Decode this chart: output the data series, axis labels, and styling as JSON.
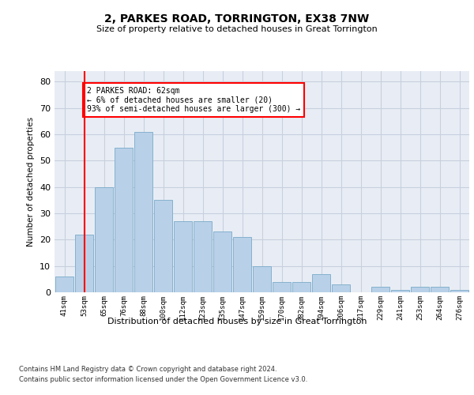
{
  "title1": "2, PARKES ROAD, TORRINGTON, EX38 7NW",
  "title2": "Size of property relative to detached houses in Great Torrington",
  "xlabel": "Distribution of detached houses by size in Great Torrington",
  "ylabel": "Number of detached properties",
  "bar_labels": [
    "41sqm",
    "53sqm",
    "65sqm",
    "76sqm",
    "88sqm",
    "100sqm",
    "112sqm",
    "123sqm",
    "135sqm",
    "147sqm",
    "159sqm",
    "170sqm",
    "182sqm",
    "194sqm",
    "206sqm",
    "217sqm",
    "229sqm",
    "241sqm",
    "253sqm",
    "264sqm",
    "276sqm"
  ],
  "bar_values": [
    6,
    22,
    40,
    55,
    61,
    35,
    27,
    27,
    23,
    21,
    10,
    4,
    4,
    7,
    3,
    0,
    2,
    1,
    2,
    2,
    1
  ],
  "bar_color": "#b8d0e8",
  "bar_edge_color": "#7aaac8",
  "grid_color": "#c8d0de",
  "background_color": "#e8edf5",
  "vline_color": "red",
  "vline_pos": 1.5,
  "annotation_text": "2 PARKES ROAD: 62sqm\n← 6% of detached houses are smaller (20)\n93% of semi-detached houses are larger (300) →",
  "annotation_box_color": "white",
  "annotation_box_edge": "red",
  "ylim": [
    0,
    84
  ],
  "yticks": [
    0,
    10,
    20,
    30,
    40,
    50,
    60,
    70,
    80
  ],
  "footer1": "Contains HM Land Registry data © Crown copyright and database right 2024.",
  "footer2": "Contains public sector information licensed under the Open Government Licence v3.0."
}
